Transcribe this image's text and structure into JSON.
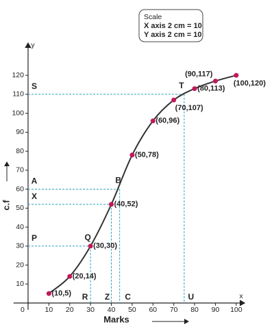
{
  "chart_data": {
    "type": "line",
    "x_label": "Marks",
    "y_label": "c.f",
    "x_axis_letter": "x",
    "y_axis_letter": "y",
    "scale_box": {
      "title": "Scale",
      "lines": [
        "X axis 2 cm = 10",
        "Y axis 2 cm = 10"
      ]
    },
    "x": [
      10,
      20,
      30,
      40,
      50,
      60,
      70,
      80,
      90,
      100
    ],
    "values": [
      5,
      14,
      30,
      52,
      78,
      96,
      107,
      113,
      117,
      120
    ],
    "value_labels": [
      "(10,5)",
      "(20,14)",
      "(30,30)",
      "(40,52)",
      "(50,78)",
      "(60,96)",
      "(70,107)",
      "(80,113)",
      "(90,117)",
      "(100,120)"
    ],
    "line_color": "#333333",
    "point_color": "#c2185b",
    "guide_color": "#2a9fbf",
    "xlim": [
      -7,
      104
    ],
    "ylim": [
      0,
      137
    ],
    "xticks": [
      0,
      10,
      20,
      30,
      40,
      50,
      60,
      70,
      80,
      90,
      100
    ],
    "yticks": [
      10,
      20,
      30,
      40,
      50,
      60,
      70,
      80,
      90,
      100,
      110,
      120
    ],
    "reference_lines": [
      {
        "x": 75,
        "y": 110,
        "y_label": "S",
        "point_label": "T",
        "x_label": "U"
      },
      {
        "x": 44,
        "y": 60,
        "y_label": "A",
        "point_label": "B",
        "x_label": "C"
      },
      {
        "x": 40,
        "y": 52,
        "y_label": "X",
        "x_label": "Z"
      },
      {
        "x": 30,
        "y": 30,
        "y_label": "P",
        "point_label": "Q",
        "x_label": "R"
      }
    ]
  }
}
